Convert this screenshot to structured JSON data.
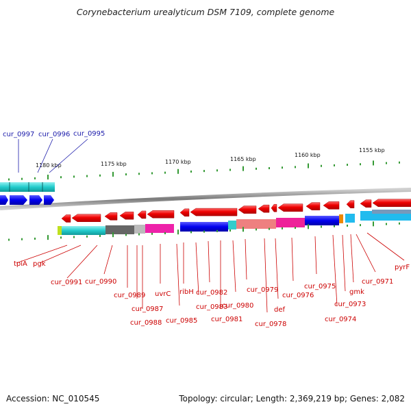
{
  "title": "Corynebacterium urealyticum DSM 7109, complete genome",
  "accession": "Accession: NC_010545",
  "summary": "Topology: circular; Length: 2,369,219 bp; Genes: 2,082",
  "ruler_ticks": [
    "1155 kbp",
    "1160 kbp",
    "1165 kbp",
    "1170 kbp",
    "1175 kbp",
    "1180 kbp"
  ],
  "gene_labels_top": [
    "cur_0997",
    "cur_0996",
    "cur_0995"
  ],
  "gene_labels_bottom": [
    "tpiA",
    "pgk",
    "cur_0991",
    "cur_0990",
    "cur_0989",
    "cur_0987",
    "cur_0988",
    "uvrC",
    "cur_0985",
    "ribH",
    "cur_0983",
    "cur_0982",
    "cur_0981",
    "cur_0980",
    "cur_0979",
    "cur_0978",
    "def",
    "cur_0976",
    "cur_0975",
    "cur_0974",
    "cur_0973",
    "gmk",
    "cur_0971",
    "pyrF"
  ],
  "colors": {
    "cds_arrow": "#ee0000",
    "label_red": "#cc0000",
    "label_blue": "#1a1aaa",
    "tick": "#339933",
    "backbone": "#999999"
  }
}
